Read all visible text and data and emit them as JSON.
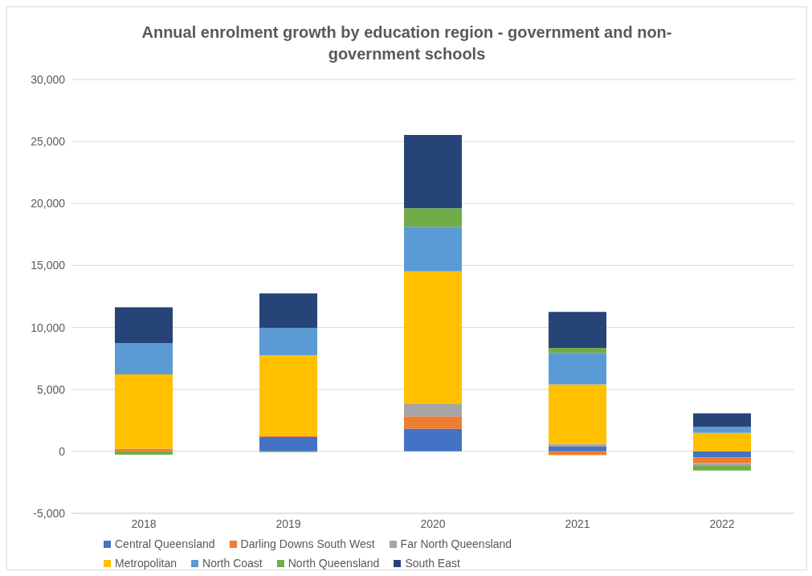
{
  "chart_data": {
    "type": "bar",
    "title": "Annual enrolment growth by education region - government and non-government schools",
    "categories": [
      "2018",
      "2019",
      "2020",
      "2021",
      "2022"
    ],
    "stacked": true,
    "series": [
      {
        "name": "Central Queensland",
        "color": "#4472c4",
        "values": [
          0,
          1150,
          1820,
          380,
          -500
        ]
      },
      {
        "name": "Darling Downs South West",
        "color": "#ed7d31",
        "values": [
          220,
          100,
          1000,
          -300,
          -450
        ]
      },
      {
        "name": "Far North Queensland",
        "color": "#a5a5a5",
        "values": [
          0,
          0,
          1000,
          220,
          -220
        ]
      },
      {
        "name": "Metropolitan",
        "color": "#ffc000",
        "values": [
          6000,
          6500,
          10700,
          4800,
          1500
        ]
      },
      {
        "name": "North Coast",
        "color": "#5b9bd5",
        "values": [
          2500,
          2200,
          3600,
          2550,
          470
        ]
      },
      {
        "name": "North Queensland",
        "color": "#70ad47",
        "values": [
          -270,
          -50,
          1500,
          400,
          -380
        ]
      },
      {
        "name": "South East",
        "color": "#264478",
        "values": [
          2900,
          2800,
          5900,
          2900,
          1100
        ]
      }
    ],
    "ylim": [
      -5000,
      30000
    ],
    "yticks": [
      {
        "value": -5000,
        "label": "-5,000"
      },
      0,
      {
        "value": 5000,
        "label": "5,000"
      },
      {
        "value": 10000,
        "label": "10,000"
      },
      {
        "value": 15000,
        "label": "15,000"
      },
      {
        "value": 20000,
        "label": "20,000"
      },
      {
        "value": 25000,
        "label": "25,000"
      },
      {
        "value": 30000,
        "label": "30,000"
      }
    ],
    "grid": "y",
    "legend": "bottom"
  }
}
